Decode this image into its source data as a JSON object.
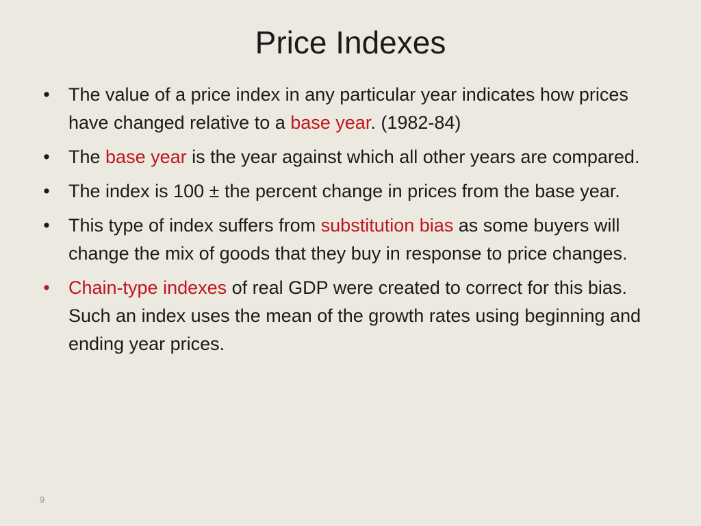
{
  "slide": {
    "title": "Price Indexes",
    "page_number": "9",
    "highlight_color": "#c0141c",
    "bullet_symbol": "•",
    "bullets": [
      {
        "parts": [
          "The value of a price index in any particular year indicates how prices have changed relative to a ",
          "base year",
          ".  (1982-84)"
        ]
      },
      {
        "parts": [
          "The ",
          "base year",
          " is the year against which all other years are compared."
        ]
      },
      {
        "parts": [
          "The index is 100 ± the percent change in prices from the base year."
        ]
      },
      {
        "parts": [
          "This type of index suffers from ",
          "substitution bias",
          " as some buyers will change the mix of goods that they buy in response to price changes."
        ]
      },
      {
        "parts": [
          "Chain-type indexes",
          " of real GDP were created to correct for this bias. Such an index uses the mean of the growth rates using beginning and ending year prices."
        ]
      }
    ]
  }
}
